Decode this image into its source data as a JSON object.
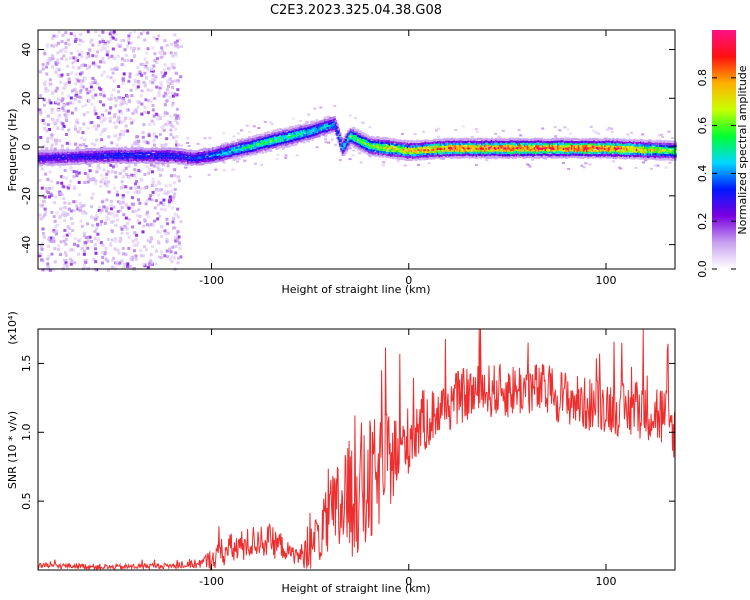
{
  "title": "C2E3.2023.325.04.38.G08",
  "chart_data": [
    {
      "type": "heatmap",
      "xlabel": "Height of straight line (km)",
      "ylabel": "Frequency (Hz)",
      "xlim": [
        -188,
        135
      ],
      "ylim": [
        -50,
        48
      ],
      "x_ticks": [
        -100,
        0,
        100
      ],
      "y_ticks": [
        -40,
        -20,
        0,
        20,
        40
      ],
      "colorbar": {
        "label": "Normalized spectral amplitude",
        "range": [
          0,
          1
        ],
        "ticks": [
          0.0,
          0.2,
          0.4,
          0.6,
          0.8
        ],
        "colors": [
          "#ffffff",
          "#c7a0f0",
          "#7a00e0",
          "#0018ff",
          "#00d8ff",
          "#00ff30",
          "#c8ff00",
          "#ffb000",
          "#ff1010",
          "#ff1088"
        ]
      },
      "ridge": {
        "x": [
          -188,
          -150,
          -120,
          -110,
          -100,
          -90,
          -80,
          -70,
          -60,
          -50,
          -42,
          -38,
          -34,
          -30,
          -25,
          -20,
          -10,
          0,
          20,
          60,
          100,
          135
        ],
        "frequency": [
          -4,
          -3,
          -3,
          -4,
          -3,
          -1,
          1,
          3,
          5,
          7,
          9,
          10,
          0,
          5,
          3,
          1,
          0,
          -1,
          0,
          0,
          0,
          -1
        ],
        "amplitude": [
          0.25,
          0.3,
          0.3,
          0.3,
          0.35,
          0.45,
          0.5,
          0.55,
          0.5,
          0.45,
          0.45,
          0.35,
          0.4,
          0.55,
          0.55,
          0.6,
          0.7,
          0.75,
          0.85,
          0.9,
          0.9,
          0.6
        ]
      }
    },
    {
      "type": "line",
      "xlabel": "Height of straight line (km)",
      "ylabel": "SNR (10 * v/v)",
      "y_multiplier": "(x10⁴)",
      "xlim": [
        -188,
        135
      ],
      "ylim": [
        0,
        1.75
      ],
      "x_ticks": [
        -100,
        0,
        100
      ],
      "y_ticks": [
        0.5,
        1.0,
        1.5
      ],
      "color": "#ee2e2e",
      "series": [
        {
          "x": [
            -188,
            -170,
            -150,
            -130,
            -115,
            -105,
            -100,
            -95,
            -90,
            -85,
            -80,
            -75,
            -70,
            -65,
            -60,
            -55,
            -50,
            -45,
            -40,
            -35,
            -30,
            -25,
            -22,
            -20,
            -15,
            -10,
            -5,
            0,
            5,
            10,
            15,
            20,
            25,
            30,
            40,
            50,
            60,
            70,
            80,
            90,
            100,
            110,
            120,
            130,
            135
          ],
          "y": [
            0.03,
            0.03,
            0.02,
            0.03,
            0.03,
            0.05,
            0.08,
            0.12,
            0.15,
            0.17,
            0.2,
            0.22,
            0.2,
            0.18,
            0.12,
            0.1,
            0.15,
            0.25,
            0.35,
            0.45,
            0.5,
            0.6,
            0.55,
            0.6,
            0.7,
            0.8,
            0.85,
            0.95,
            1.05,
            1.1,
            1.15,
            1.2,
            1.25,
            1.28,
            1.3,
            1.3,
            1.32,
            1.3,
            1.25,
            1.2,
            1.2,
            1.15,
            1.2,
            1.1,
            1.0
          ],
          "noise": [
            0.02,
            0.02,
            0.02,
            0.02,
            0.02,
            0.04,
            0.08,
            0.1,
            0.12,
            0.12,
            0.12,
            0.12,
            0.12,
            0.1,
            0.06,
            0.08,
            0.15,
            0.2,
            0.3,
            0.4,
            0.45,
            0.5,
            0.5,
            0.5,
            0.4,
            0.35,
            0.3,
            0.25,
            0.25,
            0.22,
            0.2,
            0.2,
            0.2,
            0.2,
            0.2,
            0.2,
            0.2,
            0.2,
            0.2,
            0.2,
            0.2,
            0.2,
            0.25,
            0.25,
            0.2
          ]
        }
      ]
    }
  ]
}
